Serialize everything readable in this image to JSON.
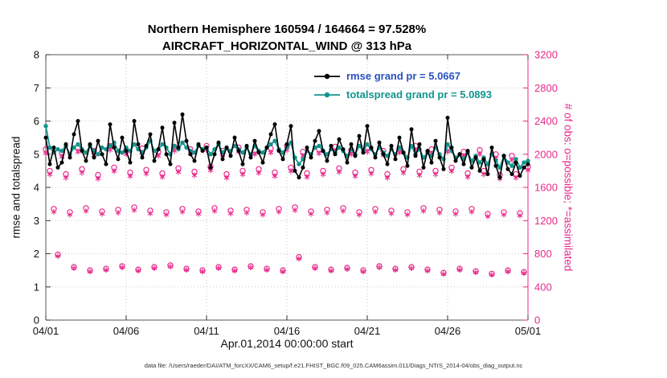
{
  "header": {
    "line1": "Northern Hemisphere 160594 / 164664 = 97.528%",
    "line2": "AIRCRAFT_HORIZONTAL_WIND @ 313 hPa"
  },
  "legend": {
    "items": [
      {
        "name": "rmse",
        "label": "rmse grand pr = 5.0667",
        "line_color": "#000000",
        "text_color": "#2a52be"
      },
      {
        "name": "totalspread",
        "label": "totalspread grand pr = 5.0893",
        "line_color": "#12948e",
        "text_color": "#12948e"
      }
    ]
  },
  "axes": {
    "left_label": "rmse and totalspread",
    "right_label": "# of obs: o=possible; *=assimilated",
    "x_label": "Apr.01,2014 00:00:00 start",
    "left_ticks": [
      0,
      1,
      2,
      3,
      4,
      5,
      6,
      7,
      8
    ],
    "right_ticks": [
      0,
      400,
      800,
      1200,
      1600,
      2000,
      2400,
      2800,
      3200
    ],
    "x_tick_labels": [
      "04/01",
      "04/06",
      "04/11",
      "04/16",
      "04/21",
      "04/26",
      "05/01"
    ],
    "x_tick_days": [
      0,
      5,
      10,
      15,
      20,
      25,
      30
    ],
    "left_range": [
      0,
      8
    ],
    "right_range": [
      0,
      3200
    ],
    "x_range_days": [
      0,
      30
    ]
  },
  "footer": {
    "data_file": "data file: /Users/raeder/DAI/ATM_forcXX/CAM6_setup/f.e21.FHIST_BGC.f09_025.CAM6assim.011/Diags_NTrS_2014-04/obs_diag_output.nc"
  },
  "colors": {
    "rmse": "#000000",
    "totalspread": "#12948e",
    "obs": "#e7298a",
    "grid": "#c8c8c8",
    "frame": "#555555",
    "tick_text": "#111111"
  },
  "chart_data": {
    "type": "line",
    "title": "Northern Hemisphere 160594 / 164664 = 97.528% — AIRCRAFT_HORIZONTAL_WIND @ 313 hPa",
    "xlabel": "Apr.01,2014 00:00:00 start",
    "ylabel_left": "rmse and totalspread",
    "ylabel_right": "# of obs: o=possible; *=assimilated",
    "ylim_left": [
      0,
      8
    ],
    "ylim_right": [
      0,
      3200
    ],
    "grid": true,
    "legend_position": "top-center-inside",
    "x_start_day": 0,
    "x_step_days": 0.25,
    "series": [
      {
        "name": "rmse",
        "axis": "left",
        "color": "#000000",
        "marker": "filled-circle",
        "grand_mean": 5.0667,
        "values": [
          5.5,
          4.7,
          5.2,
          4.6,
          4.75,
          5.3,
          4.9,
          5.6,
          6.0,
          5.1,
          4.8,
          5.3,
          4.9,
          5.4,
          5.0,
          4.7,
          5.9,
          5.2,
          4.85,
          5.5,
          5.1,
          4.75,
          6.0,
          5.3,
          4.9,
          5.25,
          5.6,
          4.8,
          5.15,
          5.8,
          5.0,
          4.7,
          5.95,
          5.2,
          6.2,
          5.4,
          5.0,
          4.8,
          5.3,
          5.1,
          5.2,
          4.6,
          5.0,
          5.35,
          4.85,
          5.2,
          4.95,
          5.5,
          5.1,
          4.7,
          5.25,
          4.9,
          5.4,
          5.05,
          4.75,
          5.2,
          5.6,
          5.9,
          5.1,
          4.85,
          5.3,
          5.85,
          4.5,
          4.3,
          4.6,
          5.2,
          4.9,
          5.4,
          5.7,
          5.1,
          4.8,
          5.25,
          5.0,
          5.45,
          5.15,
          4.75,
          5.3,
          4.95,
          5.55,
          5.05,
          5.85,
          5.2,
          4.9,
          5.35,
          5.0,
          4.7,
          5.25,
          4.85,
          5.5,
          5.05,
          4.65,
          5.75,
          4.95,
          5.3,
          4.6,
          5.1,
          4.75,
          5.4,
          4.9,
          4.55,
          6.1,
          5.2,
          4.8,
          5.0,
          4.7,
          5.1,
          4.6,
          4.9,
          4.5,
          4.85,
          4.4,
          5.2,
          4.65,
          4.3,
          4.95,
          4.55,
          4.4,
          4.75,
          4.35,
          4.6,
          4.7
        ]
      },
      {
        "name": "totalspread",
        "axis": "left",
        "color": "#12948e",
        "marker": "filled-circle",
        "grand_mean": 5.0893,
        "values": [
          5.85,
          5.2,
          5.05,
          5.15,
          5.1,
          5.25,
          5.0,
          5.2,
          5.3,
          5.15,
          5.05,
          5.25,
          5.1,
          5.0,
          5.2,
          5.15,
          5.25,
          5.35,
          5.1,
          5.05,
          5.2,
          5.1,
          5.3,
          5.15,
          5.05,
          5.2,
          5.4,
          5.1,
          5.15,
          5.3,
          5.2,
          5.0,
          5.25,
          5.15,
          5.35,
          5.2,
          5.1,
          5.05,
          5.25,
          5.15,
          5.2,
          5.0,
          5.15,
          5.3,
          5.05,
          5.2,
          5.1,
          5.25,
          5.15,
          5.05,
          5.2,
          5.0,
          5.25,
          5.1,
          5.05,
          5.2,
          5.3,
          5.4,
          5.15,
          5.05,
          5.2,
          5.35,
          4.9,
          4.7,
          4.85,
          5.1,
          5.0,
          5.2,
          5.25,
          5.1,
          5.0,
          5.15,
          5.05,
          5.2,
          5.1,
          4.95,
          5.15,
          5.0,
          5.25,
          5.1,
          5.3,
          5.15,
          5.0,
          5.2,
          5.05,
          4.95,
          5.15,
          5.0,
          5.2,
          5.05,
          4.9,
          5.25,
          5.0,
          5.15,
          4.9,
          5.05,
          4.95,
          5.2,
          5.0,
          4.85,
          5.3,
          5.1,
          4.9,
          5.0,
          4.85,
          5.05,
          4.8,
          4.95,
          4.75,
          4.9,
          4.7,
          5.0,
          4.8,
          4.6,
          4.95,
          4.75,
          4.65,
          4.85,
          4.6,
          4.75,
          4.8
        ]
      },
      {
        "name": "possible_obs",
        "axis": "right",
        "color": "#e7298a",
        "marker": "o",
        "values": [
          2060,
          1800,
          1340,
          790,
          2020,
          1760,
          1300,
          640,
          2080,
          1820,
          1350,
          600,
          2040,
          1750,
          1310,
          620,
          2100,
          1840,
          1330,
          650,
          2050,
          1780,
          1360,
          610,
          2070,
          1810,
          1320,
          640,
          2030,
          1770,
          1300,
          660,
          2090,
          1830,
          1340,
          620,
          2060,
          1790,
          1310,
          600,
          2100,
          1850,
          1350,
          640,
          2040,
          1760,
          1320,
          610,
          2080,
          1800,
          1330,
          650,
          2050,
          1820,
          1300,
          620,
          2070,
          1780,
          1340,
          600,
          2100,
          1840,
          1360,
          760,
          2030,
          1770,
          1310,
          640,
          2060,
          1800,
          1330,
          610,
          2090,
          1830,
          1350,
          630,
          2050,
          1780,
          1300,
          600,
          2080,
          1810,
          1340,
          650,
          2040,
          1760,
          1320,
          620,
          2070,
          1820,
          1300,
          640,
          2100,
          1790,
          1350,
          610,
          2060,
          1800,
          1330,
          570,
          2080,
          1840,
          1310,
          620,
          2030,
          1770,
          1340,
          590,
          2050,
          1800,
          1280,
          560,
          2000,
          1750,
          1300,
          600,
          1980,
          1760,
          1290,
          580,
          1850
        ]
      },
      {
        "name": "assimilated_obs",
        "axis": "right",
        "color": "#e7298a",
        "marker": "*",
        "values": [
          2010,
          1755,
          1305,
          770,
          1970,
          1715,
          1270,
          625,
          2030,
          1775,
          1315,
          585,
          1990,
          1705,
          1280,
          605,
          2050,
          1795,
          1295,
          635,
          2000,
          1735,
          1325,
          595,
          2020,
          1765,
          1285,
          625,
          1980,
          1725,
          1270,
          645,
          2040,
          1785,
          1305,
          605,
          2010,
          1745,
          1280,
          585,
          2050,
          1805,
          1315,
          625,
          1990,
          1715,
          1285,
          595,
          2030,
          1755,
          1295,
          635,
          2000,
          1775,
          1270,
          605,
          2020,
          1735,
          1305,
          585,
          2050,
          1795,
          1325,
          740,
          1980,
          1725,
          1280,
          625,
          2010,
          1755,
          1295,
          595,
          2040,
          1785,
          1315,
          615,
          2000,
          1735,
          1270,
          585,
          2030,
          1765,
          1305,
          635,
          1990,
          1715,
          1285,
          605,
          2020,
          1775,
          1270,
          625,
          2050,
          1745,
          1315,
          595,
          2010,
          1755,
          1295,
          555,
          2030,
          1795,
          1280,
          605,
          1980,
          1725,
          1305,
          575,
          2000,
          1755,
          1250,
          545,
          1950,
          1705,
          1270,
          585,
          1930,
          1715,
          1260,
          565,
          1805
        ]
      }
    ]
  }
}
